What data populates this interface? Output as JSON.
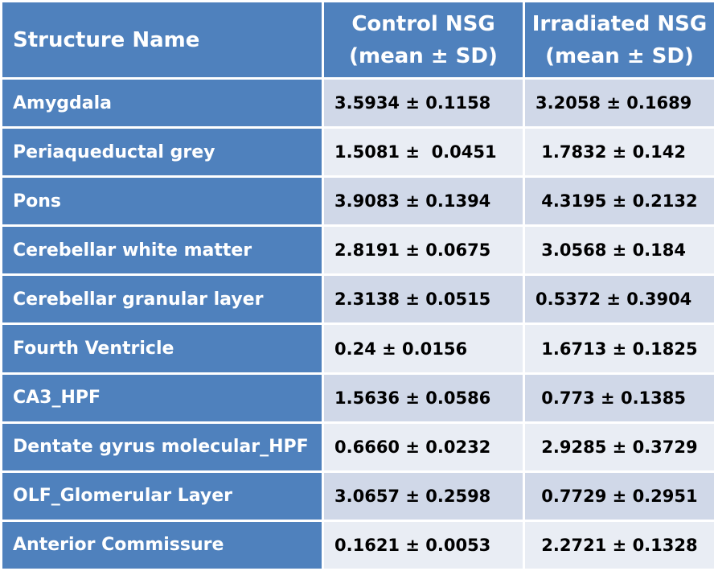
{
  "header": {
    "structure_name": "Structure Name",
    "control_line1": "Control NSG",
    "control_line2": "(mean ± SD)",
    "irradiated_line1": "Irradiated NSG",
    "irradiated_line2": "(mean ± SD)"
  },
  "rows": [
    {
      "name": "Amygdala",
      "control": "3.5934 ± 0.1158",
      "irradiated": "3.2058 ± 0.1689"
    },
    {
      "name": "Periaqueductal grey",
      "control": "1.5081 ±  0.0451",
      "irradiated": " 1.7832 ± 0.142"
    },
    {
      "name": "Pons",
      "control": "3.9083 ± 0.1394",
      "irradiated": " 4.3195 ± 0.2132"
    },
    {
      "name": "Cerebellar white matter",
      "control": "2.8191 ± 0.0675",
      "irradiated": " 3.0568 ± 0.184"
    },
    {
      "name": "Cerebellar granular layer",
      "control": "2.3138 ± 0.0515",
      "irradiated": "0.5372 ± 0.3904"
    },
    {
      "name": "Fourth Ventricle",
      "control": "0.24 ± 0.0156",
      "irradiated": " 1.6713 ± 0.1825"
    },
    {
      "name": "CA3_HPF",
      "control": "1.5636 ± 0.0586",
      "irradiated": " 0.773 ± 0.1385"
    },
    {
      "name": "Dentate gyrus molecular_HPF",
      "control": "0.6660 ± 0.0232",
      "irradiated": " 2.9285 ± 0.3729"
    },
    {
      "name": "OLF_Glomerular Layer",
      "control": "3.0657 ± 0.2598",
      "irradiated": " 0.7729 ± 0.2951"
    },
    {
      "name": "Anterior Commissure",
      "control": "0.1621 ± 0.0053",
      "irradiated": " 2.2721 ± 0.1328"
    }
  ],
  "colors": {
    "header_bg": "#4f81bd",
    "row_odd_bg": "#d0d8e8",
    "row_even_bg": "#e9edf4"
  }
}
